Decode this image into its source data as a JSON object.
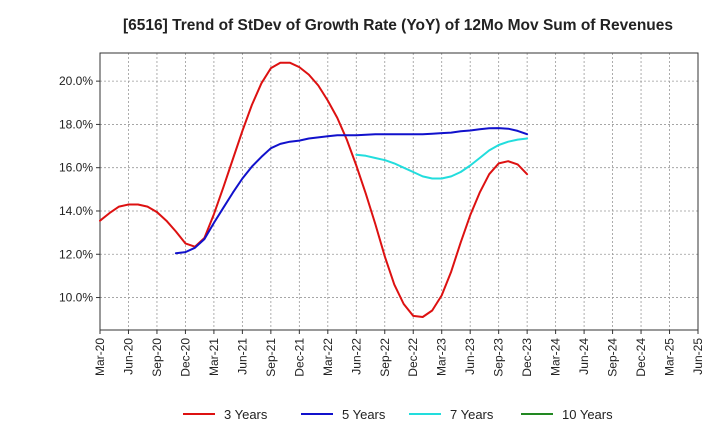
{
  "chart_data": {
    "type": "line",
    "title": "[6516]  Trend of StDev of Growth Rate (YoY) of 12Mo Mov Sum of Revenues",
    "xlabel": "",
    "ylabel": "",
    "x_ticks": [
      "Mar-20",
      "Jun-20",
      "Sep-20",
      "Dec-20",
      "Mar-21",
      "Jun-21",
      "Sep-21",
      "Dec-21",
      "Mar-22",
      "Jun-22",
      "Sep-22",
      "Dec-22",
      "Mar-23",
      "Jun-23",
      "Sep-23",
      "Dec-23",
      "Mar-24",
      "Jun-24",
      "Sep-24",
      "Dec-24",
      "Mar-25",
      "Jun-25"
    ],
    "y_ticks": [
      10.0,
      12.0,
      14.0,
      16.0,
      18.0,
      20.0
    ],
    "y_tick_labels": [
      "10.0%",
      "12.0%",
      "14.0%",
      "16.0%",
      "18.0%",
      "20.0%"
    ],
    "ylim": [
      8.5,
      21.3
    ],
    "grid": true,
    "legend_position": "bottom",
    "series": [
      {
        "name": "3 Years",
        "color": "#dd1111",
        "points": [
          [
            0,
            13.55
          ],
          [
            1,
            13.9
          ],
          [
            2,
            14.2
          ],
          [
            3,
            14.3
          ],
          [
            4,
            14.3
          ],
          [
            5,
            14.2
          ],
          [
            6,
            13.95
          ],
          [
            7,
            13.55
          ],
          [
            8,
            13.05
          ],
          [
            9,
            12.5
          ],
          [
            10,
            12.35
          ],
          [
            11,
            12.75
          ],
          [
            12,
            13.85
          ],
          [
            13,
            15.1
          ],
          [
            14,
            16.4
          ],
          [
            15,
            17.7
          ],
          [
            16,
            18.9
          ],
          [
            17,
            19.9
          ],
          [
            18,
            20.6
          ],
          [
            19,
            20.85
          ],
          [
            20,
            20.85
          ],
          [
            21,
            20.65
          ],
          [
            22,
            20.3
          ],
          [
            23,
            19.8
          ],
          [
            24,
            19.1
          ],
          [
            25,
            18.3
          ],
          [
            26,
            17.3
          ],
          [
            27,
            16.1
          ],
          [
            28,
            14.8
          ],
          [
            29,
            13.4
          ],
          [
            30,
            11.9
          ],
          [
            31,
            10.6
          ],
          [
            32,
            9.7
          ],
          [
            33,
            9.15
          ],
          [
            34,
            9.1
          ],
          [
            35,
            9.4
          ],
          [
            36,
            10.1
          ],
          [
            37,
            11.2
          ],
          [
            38,
            12.55
          ],
          [
            39,
            13.8
          ],
          [
            40,
            14.85
          ],
          [
            41,
            15.7
          ],
          [
            42,
            16.2
          ],
          [
            43,
            16.3
          ],
          [
            44,
            16.15
          ],
          [
            45,
            15.7
          ]
        ]
      },
      {
        "name": "5 Years",
        "color": "#1111cc",
        "points": [
          [
            8,
            12.05
          ],
          [
            9,
            12.1
          ],
          [
            10,
            12.3
          ],
          [
            11,
            12.7
          ],
          [
            12,
            13.45
          ],
          [
            13,
            14.15
          ],
          [
            14,
            14.85
          ],
          [
            15,
            15.5
          ],
          [
            16,
            16.05
          ],
          [
            17,
            16.5
          ],
          [
            18,
            16.9
          ],
          [
            19,
            17.1
          ],
          [
            20,
            17.2
          ],
          [
            21,
            17.25
          ],
          [
            22,
            17.35
          ],
          [
            23,
            17.4
          ],
          [
            24,
            17.45
          ],
          [
            25,
            17.5
          ],
          [
            26,
            17.5
          ],
          [
            27,
            17.5
          ],
          [
            28,
            17.52
          ],
          [
            29,
            17.55
          ],
          [
            30,
            17.55
          ],
          [
            31,
            17.55
          ],
          [
            32,
            17.55
          ],
          [
            33,
            17.55
          ],
          [
            34,
            17.55
          ],
          [
            35,
            17.57
          ],
          [
            36,
            17.6
          ],
          [
            37,
            17.62
          ],
          [
            38,
            17.68
          ],
          [
            39,
            17.72
          ],
          [
            40,
            17.78
          ],
          [
            41,
            17.82
          ],
          [
            42,
            17.83
          ],
          [
            43,
            17.8
          ],
          [
            44,
            17.7
          ],
          [
            45,
            17.55
          ]
        ]
      },
      {
        "name": "7 Years",
        "color": "#22dddd",
        "points": [
          [
            27,
            16.6
          ],
          [
            28,
            16.55
          ],
          [
            29,
            16.45
          ],
          [
            30,
            16.35
          ],
          [
            31,
            16.2
          ],
          [
            32,
            16.0
          ],
          [
            33,
            15.8
          ],
          [
            34,
            15.6
          ],
          [
            35,
            15.5
          ],
          [
            36,
            15.5
          ],
          [
            37,
            15.6
          ],
          [
            38,
            15.8
          ],
          [
            39,
            16.1
          ],
          [
            40,
            16.45
          ],
          [
            41,
            16.8
          ],
          [
            42,
            17.05
          ],
          [
            43,
            17.2
          ],
          [
            44,
            17.3
          ],
          [
            45,
            17.35
          ]
        ]
      },
      {
        "name": "10 Years",
        "color": "#228822",
        "points": []
      }
    ]
  }
}
